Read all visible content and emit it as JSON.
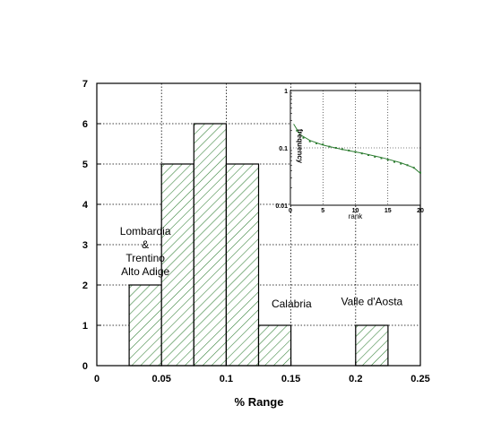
{
  "chart_data": [
    {
      "type": "bar",
      "xlabel": "% Range",
      "ylabel": "",
      "xlim": [
        0,
        0.25
      ],
      "ylim": [
        0,
        7
      ],
      "grid": true,
      "bar_fill": "diagonal hatch",
      "colors": {
        "hatch": "#2e7d32",
        "outline": "#000000",
        "grid": "#000000"
      },
      "x_ticks": [
        "0",
        "0.05",
        "0.1",
        "0.15",
        "0.2",
        "0.25"
      ],
      "y_ticks": [
        "0",
        "1",
        "2",
        "3",
        "4",
        "5",
        "6",
        "7"
      ],
      "bins": [
        {
          "x0": 0.025,
          "x1": 0.05,
          "value": 2
        },
        {
          "x0": 0.05,
          "x1": 0.075,
          "value": 5
        },
        {
          "x0": 0.075,
          "x1": 0.1,
          "value": 6
        },
        {
          "x0": 0.1,
          "x1": 0.125,
          "value": 5
        },
        {
          "x0": 0.125,
          "x1": 0.15,
          "value": 1
        },
        {
          "x0": 0.2,
          "x1": 0.225,
          "value": 1
        }
      ],
      "annotations": [
        {
          "lines": [
            "Lombardia",
            "&",
            "Trentino",
            "Alto Adige"
          ],
          "x": 0.0375,
          "y": 3.25
        },
        {
          "lines": [
            "Calabria"
          ],
          "x": 0.1505,
          "y": 1.45
        },
        {
          "lines": [
            "Valle d'Aosta"
          ],
          "x": 0.2125,
          "y": 1.5
        }
      ]
    },
    {
      "type": "scatter",
      "inset": true,
      "xlabel": "rank",
      "ylabel": "frequency",
      "xlim": [
        0,
        20
      ],
      "ylim": [
        0.01,
        1
      ],
      "yscale": "log",
      "grid": true,
      "x_ticks": [
        "0",
        "5",
        "10",
        "15",
        "20"
      ],
      "y_ticks": [
        "0.01",
        "0.1",
        "1"
      ],
      "colors": {
        "points": "#2e7d32",
        "fit": "#2e7d32"
      },
      "points": [
        {
          "x": 1,
          "y": 0.2
        },
        {
          "x": 2,
          "y": 0.15
        },
        {
          "x": 3,
          "y": 0.13
        },
        {
          "x": 4,
          "y": 0.12
        },
        {
          "x": 5,
          "y": 0.115
        },
        {
          "x": 6,
          "y": 0.105
        },
        {
          "x": 7,
          "y": 0.1
        },
        {
          "x": 8,
          "y": 0.095
        },
        {
          "x": 9,
          "y": 0.09
        },
        {
          "x": 10,
          "y": 0.085
        },
        {
          "x": 11,
          "y": 0.08
        },
        {
          "x": 12,
          "y": 0.075
        },
        {
          "x": 13,
          "y": 0.07
        },
        {
          "x": 14,
          "y": 0.066
        },
        {
          "x": 15,
          "y": 0.062
        },
        {
          "x": 16,
          "y": 0.057
        },
        {
          "x": 17,
          "y": 0.053
        },
        {
          "x": 18,
          "y": 0.05
        },
        {
          "x": 19,
          "y": 0.045
        },
        {
          "x": 20,
          "y": 0.037
        }
      ],
      "fit_curve": [
        {
          "x": 0.5,
          "y": 0.26
        },
        {
          "x": 1.5,
          "y": 0.17
        },
        {
          "x": 3,
          "y": 0.135
        },
        {
          "x": 5,
          "y": 0.112
        },
        {
          "x": 8,
          "y": 0.094
        },
        {
          "x": 11,
          "y": 0.081
        },
        {
          "x": 14,
          "y": 0.068
        },
        {
          "x": 17,
          "y": 0.055
        },
        {
          "x": 19,
          "y": 0.045
        },
        {
          "x": 20,
          "y": 0.036
        }
      ]
    }
  ]
}
